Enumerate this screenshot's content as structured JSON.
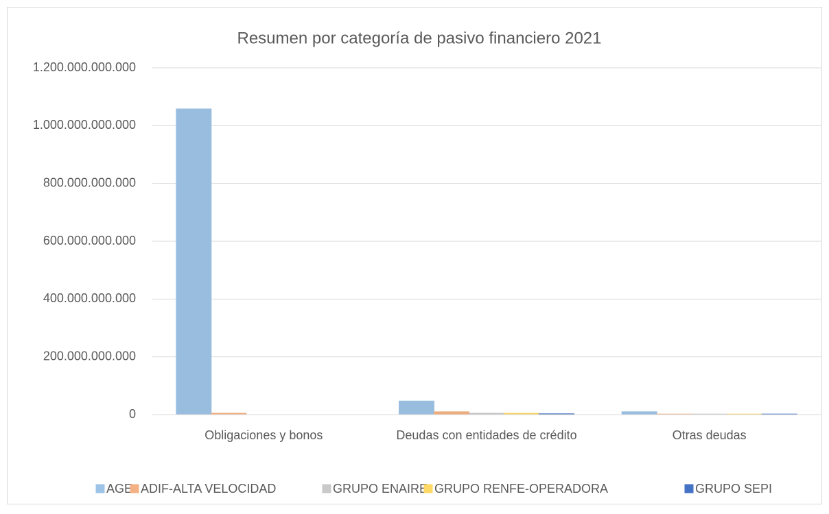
{
  "chart_data": {
    "type": "bar",
    "title": "Resumen por categoría de pasivo financiero 2021",
    "categories": [
      "Obligaciones y bonos",
      "Deudas con entidades de crédito",
      "Otras deudas"
    ],
    "series": [
      {
        "name": "AGE",
        "color": "#9dc3e6",
        "values": [
          1058000000000,
          47000000000,
          10000000000
        ]
      },
      {
        "name": "ADIF-ALTA VELOCIDAD",
        "color": "#f4b183",
        "values": [
          5000000000,
          10000000000,
          2000000000
        ]
      },
      {
        "name": "GRUPO ENAIRE",
        "color": "#c9c9c9",
        "values": [
          0,
          5000000000,
          2000000000
        ]
      },
      {
        "name": "GRUPO RENFE-OPERADORA",
        "color": "#ffd966",
        "values": [
          0,
          5000000000,
          2000000000
        ]
      },
      {
        "name": "GRUPO SEPI",
        "color": "#4472c4",
        "values": [
          0,
          3000000000,
          2000000000
        ]
      }
    ],
    "ylim": [
      0,
      1200000000000
    ],
    "yticks": [
      0,
      {
        "value": 200000000000,
        "label": "200.000.000.000"
      },
      {
        "value": 400000000000,
        "label": "400.000.000.000"
      },
      {
        "value": 600000000000,
        "label": "600.000.000.000"
      },
      {
        "value": 800000000000,
        "label": "800.000.000.000"
      },
      {
        "value": 1000000000000,
        "label": "1.000.000.000.000"
      },
      {
        "value": 1200000000000,
        "label": "1.200.000.000.000"
      }
    ],
    "grid": true,
    "legend": "bottom"
  }
}
